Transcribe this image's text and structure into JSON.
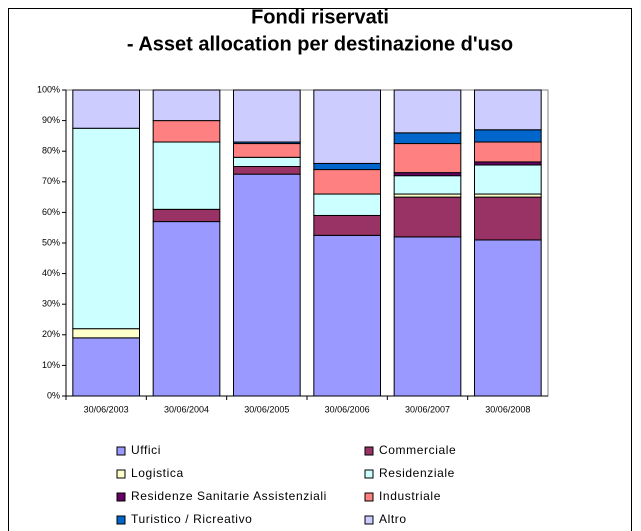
{
  "chart_data": {
    "type": "stacked_bar",
    "title": [
      "Fondi riservati",
      "- Asset allocation per destinazione d'uso"
    ],
    "categories": [
      "30/06/2003",
      "30/06/2004",
      "30/06/2005",
      "30/06/2006",
      "30/06/2007",
      "30/06/2008"
    ],
    "series": [
      {
        "name": "Uffici",
        "color": "#9999ff",
        "values": [
          19,
          57,
          72.5,
          52.5,
          52,
          51
        ]
      },
      {
        "name": "Commerciale",
        "color": "#993366",
        "values": [
          0,
          4,
          2.5,
          6.5,
          13,
          14
        ]
      },
      {
        "name": "Logistica",
        "color": "#ffffcc",
        "values": [
          3,
          0,
          0,
          0,
          1,
          1
        ]
      },
      {
        "name": "Residenziale",
        "color": "#ccffff",
        "values": [
          65.5,
          22,
          3,
          7,
          6,
          9.5
        ]
      },
      {
        "name": "Residenze Sanitarie Assistenziali",
        "color": "#660066",
        "values": [
          0,
          0,
          0,
          0,
          1,
          1
        ]
      },
      {
        "name": "Industriale",
        "color": "#ff8080",
        "values": [
          0,
          7,
          4.5,
          8,
          9.5,
          6.5
        ]
      },
      {
        "name": "Turistico / Ricreativo",
        "color": "#0066cc",
        "values": [
          0,
          0,
          0.5,
          2,
          3.5,
          4
        ]
      },
      {
        "name": "Altro",
        "color": "#ccccff",
        "values": [
          12.5,
          10,
          17,
          24,
          14,
          13
        ]
      }
    ],
    "ylim": [
      0,
      100
    ],
    "yticks": [
      {
        "value": 0,
        "label": "0%"
      },
      {
        "value": 10,
        "label": "10%"
      },
      {
        "value": 20,
        "label": "20%"
      },
      {
        "value": 30,
        "label": "30%"
      },
      {
        "value": 40,
        "label": "40%"
      },
      {
        "value": 50,
        "label": "50%"
      },
      {
        "value": 60,
        "label": "60%"
      },
      {
        "value": 70,
        "label": "70%"
      },
      {
        "value": 80,
        "label": "80%"
      },
      {
        "value": 90,
        "label": "90%"
      },
      {
        "value": 100,
        "label": "100%"
      }
    ],
    "grid": false,
    "legend": "bottom"
  }
}
